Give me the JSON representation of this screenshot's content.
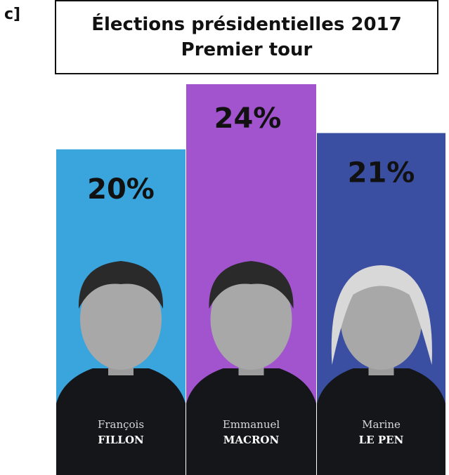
{
  "panel_label": "c]",
  "chart_data": {
    "type": "bar",
    "title": "Élections présidentielles 2017",
    "subtitle": "Premier tour",
    "categories": [
      "FILLON",
      "MACRON",
      "LE PEN"
    ],
    "values": [
      20,
      24,
      21
    ],
    "value_labels": [
      "20%",
      "24%",
      "21%"
    ],
    "candidates": [
      {
        "first_name": "François",
        "last_name": "FILLON",
        "color": "#3aa4dd",
        "value": 20,
        "label": "20%"
      },
      {
        "first_name": "Emmanuel",
        "last_name": "MACRON",
        "color": "#a254cf",
        "value": 24,
        "label": "24%"
      },
      {
        "first_name": "Marine",
        "last_name": "LE PEN",
        "color": "#3b4fa2",
        "value": 21,
        "label": "21%"
      }
    ],
    "ylim": [
      0,
      24
    ]
  }
}
